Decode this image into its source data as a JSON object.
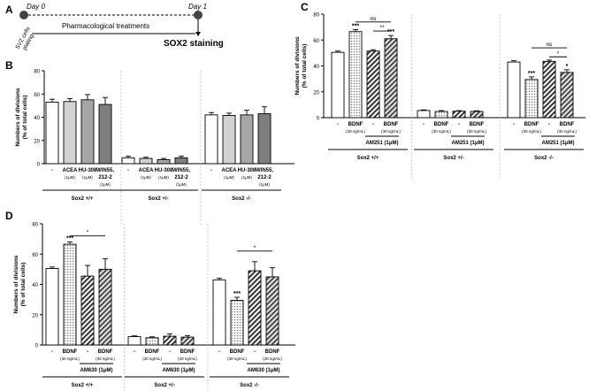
{
  "figure": {
    "panel_letters": [
      "A",
      "B",
      "C",
      "D"
    ],
    "timeline": {
      "day0": "Day 0",
      "day1": "Day 1",
      "plating_line1": "SVZ cells",
      "plating_line2": "plating",
      "treatment": "Pharmacological treatments",
      "staining": "SOX2 staining"
    }
  },
  "chart_data": [
    {
      "panel": "B",
      "type": "bar",
      "ylabel_line1": "Numbers of divisions",
      "ylabel_line2": "(% of total cells)",
      "ylim": [
        0,
        80
      ],
      "yticks": [
        0,
        20,
        40,
        60,
        80
      ],
      "groups": [
        {
          "name": "Sox2 +/+",
          "values": [
            53,
            53.5,
            55,
            51
          ],
          "errors": [
            2.5,
            2.5,
            4.5,
            6
          ]
        },
        {
          "name": "Sox2 +/-",
          "values": [
            5,
            4.5,
            3.5,
            5
          ],
          "errors": [
            1.5,
            1,
            1,
            1.5
          ]
        },
        {
          "name": "Sox2 -/-",
          "values": [
            42,
            41.5,
            42,
            43
          ],
          "errors": [
            2,
            2,
            4,
            6
          ]
        }
      ],
      "bar_fills": [
        "white",
        "#d2d2d2",
        "#a6a6a6",
        "#7e7e7e"
      ],
      "categories": [
        "-",
        "ACEA",
        "HU-308",
        "WIN55,"
      ],
      "category_line2": [
        "",
        "",
        "",
        "212-2"
      ],
      "category_units": [
        "",
        "(1μM)",
        "(1μM)",
        "(1μM)"
      ],
      "group_labels": [
        "Sox2 +/+",
        "Sox2 +/-",
        "Sox2 -/-"
      ]
    },
    {
      "panel": "C",
      "type": "bar",
      "ylabel_line1": "Numbers of divisions",
      "ylabel_line2": "(% of total cells)",
      "ylim": [
        0,
        80
      ],
      "yticks": [
        0,
        20,
        40,
        60,
        80
      ],
      "groups": [
        {
          "name": "Sox2 +/+",
          "values": [
            50.5,
            66.5,
            51.5,
            61
          ],
          "errors": [
            1,
            1.5,
            1,
            2.5
          ]
        },
        {
          "name": "Sox2 +/-",
          "values": [
            5.5,
            4.8,
            5,
            4.8
          ],
          "errors": [
            0.5,
            0.6,
            0.4,
            0.5
          ]
        },
        {
          "name": "Sox2 -/-",
          "values": [
            43,
            29.5,
            43.5,
            35
          ],
          "errors": [
            1,
            2,
            1,
            2
          ]
        }
      ],
      "bar_patterns": [
        "white",
        "dots",
        "hatch",
        "hatchdots"
      ],
      "categories": [
        "-",
        "BDNF",
        "-",
        "BDNF"
      ],
      "category_units": [
        "",
        "(30 ng/mL)",
        "",
        "(30 ng/mL)"
      ],
      "treatment_label": "AM251 (1μM)",
      "group_labels": [
        "Sox2 +/+",
        "Sox2 +/-",
        "Sox2 -/-"
      ],
      "significance": {
        "star3": "***",
        "star2": "**",
        "star1": "*",
        "ns": "ns"
      }
    },
    {
      "panel": "D",
      "type": "bar",
      "ylabel_line1": "Numbers of divisions",
      "ylabel_line2": "(% of total cells)",
      "ylim": [
        0,
        80
      ],
      "yticks": [
        0,
        20,
        40,
        60,
        80
      ],
      "groups": [
        {
          "name": "Sox2 +/+",
          "values": [
            50.5,
            66.5,
            45.5,
            50
          ],
          "errors": [
            1,
            1.5,
            7,
            7
          ]
        },
        {
          "name": "Sox2 +/-",
          "values": [
            5.5,
            4.8,
            5.8,
            5.2
          ],
          "errors": [
            0.5,
            0.6,
            1.5,
            1
          ]
        },
        {
          "name": "Sox2 -/-",
          "values": [
            43,
            29.5,
            49,
            45
          ],
          "errors": [
            1,
            2,
            6,
            6
          ]
        }
      ],
      "bar_patterns": [
        "white",
        "dots",
        "hatch",
        "hatchdots"
      ],
      "categories": [
        "-",
        "BDNF",
        "-",
        "BDNF"
      ],
      "category_units": [
        "",
        "(30 ng/mL)",
        "",
        "(30 ng/mL)"
      ],
      "treatment_label": "AM630 (1μM)",
      "group_labels": [
        "Sox2 +/+",
        "Sox2 +/-",
        "Sox2 -/-"
      ],
      "significance": {
        "star3": "***",
        "star1": "*"
      }
    }
  ]
}
